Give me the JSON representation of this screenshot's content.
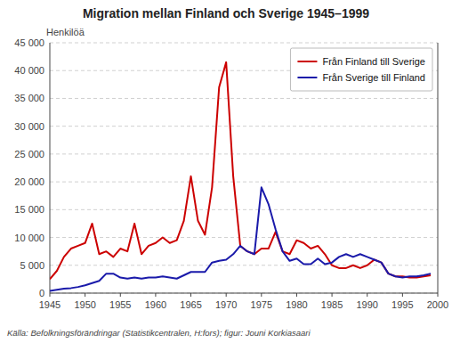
{
  "chart_data": {
    "type": "line",
    "title": "Migration mellan Finland och Sverige 1945–1999",
    "ylabel": "Henkilöä",
    "caption": "Källa: Befolkningsförändringar (Statistikcentralen, H:fors); figur: Jouni Korkiasaari",
    "x": [
      1945,
      1946,
      1947,
      1948,
      1949,
      1950,
      1951,
      1952,
      1953,
      1954,
      1955,
      1956,
      1957,
      1958,
      1959,
      1960,
      1961,
      1962,
      1963,
      1964,
      1965,
      1966,
      1967,
      1968,
      1969,
      1970,
      1971,
      1972,
      1973,
      1974,
      1975,
      1976,
      1977,
      1978,
      1979,
      1980,
      1981,
      1982,
      1983,
      1984,
      1985,
      1986,
      1987,
      1988,
      1989,
      1990,
      1991,
      1992,
      1993,
      1994,
      1995,
      1996,
      1997,
      1998,
      1999
    ],
    "series": [
      {
        "name": "Från Finland till Sverige",
        "color": "#cc0000",
        "values": [
          2500,
          4000,
          6500,
          8000,
          8500,
          9000,
          12500,
          7000,
          7500,
          6500,
          8000,
          7500,
          12500,
          7000,
          8500,
          9000,
          10000,
          9000,
          9500,
          13000,
          21000,
          13000,
          10500,
          19000,
          37000,
          41500,
          21000,
          8500,
          7500,
          7000,
          8000,
          8000,
          11000,
          7500,
          7000,
          9500,
          9000,
          8000,
          8500,
          7000,
          5000,
          4500,
          4500,
          5000,
          4500,
          5000,
          6000,
          5500,
          3500,
          3000,
          3000,
          2800,
          2800,
          3000,
          3200
        ]
      },
      {
        "name": "Från Sverige till Finland",
        "color": "#1a1aaa",
        "values": [
          400,
          600,
          800,
          900,
          1100,
          1400,
          1800,
          2200,
          3500,
          3500,
          2800,
          2600,
          2800,
          2600,
          2800,
          2800,
          3000,
          2800,
          2600,
          3200,
          3800,
          3800,
          3800,
          5500,
          5800,
          6000,
          7000,
          8500,
          7500,
          7000,
          19000,
          16000,
          11500,
          7500,
          5800,
          6200,
          5200,
          5200,
          6200,
          5200,
          5500,
          6500,
          7000,
          6500,
          7000,
          6500,
          6000,
          5500,
          3500,
          3000,
          2800,
          3000,
          3000,
          3200,
          3500
        ]
      }
    ],
    "xlim": [
      1945,
      2000
    ],
    "ylim": [
      0,
      45000
    ],
    "xticks": [
      1945,
      1950,
      1955,
      1960,
      1965,
      1970,
      1975,
      1980,
      1985,
      1990,
      1995,
      2000
    ],
    "yticks": [
      0,
      {
        "value": 5000,
        "label": "5 000"
      },
      {
        "value": 10000,
        "label": "10 000"
      },
      {
        "value": 15000,
        "label": "15 000"
      },
      {
        "value": 20000,
        "label": "20 000"
      },
      {
        "value": 25000,
        "label": "25 000"
      },
      {
        "value": 30000,
        "label": "30 000"
      },
      {
        "value": 35000,
        "label": "35 000"
      },
      {
        "value": 40000,
        "label": "40 000"
      },
      {
        "value": 45000,
        "label": "45 000"
      }
    ],
    "grid": true,
    "legend": "upper right"
  }
}
